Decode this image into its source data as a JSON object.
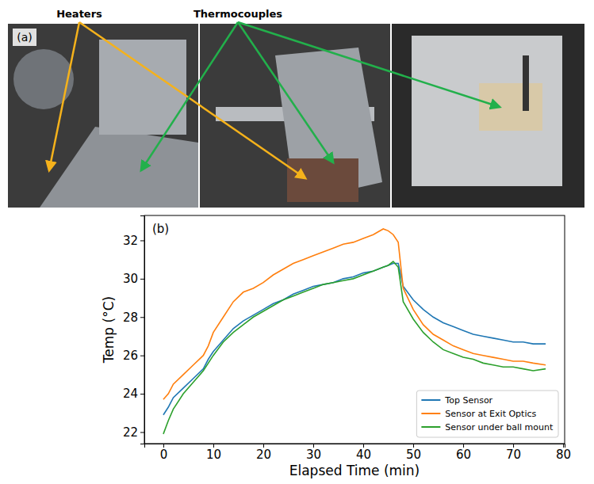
{
  "photo_panel": {
    "label": "(a)",
    "heaters_label": "Heaters",
    "thermocouples_label": "Thermocouples"
  },
  "chart_data": {
    "type": "line",
    "annotations": [
      "(b)"
    ],
    "x_label": "Elapsed Time (min)",
    "y_label": "Temp (°C)",
    "x": [
      0,
      1,
      2,
      4,
      6,
      8,
      9,
      10,
      12,
      14,
      16,
      18,
      20,
      22,
      24,
      26,
      28,
      30,
      32,
      34,
      36,
      38,
      40,
      42,
      44,
      45,
      46,
      47,
      48,
      50,
      52,
      54,
      56,
      58,
      60,
      62,
      64,
      66,
      68,
      70,
      72,
      74,
      76.5
    ],
    "series": [
      {
        "name": "Top Sensor",
        "color": "#1f77b4",
        "values": [
          22.9,
          23.3,
          23.8,
          24.3,
          24.8,
          25.3,
          25.8,
          26.2,
          26.8,
          27.4,
          27.8,
          28.1,
          28.4,
          28.7,
          28.9,
          29.2,
          29.4,
          29.6,
          29.7,
          29.8,
          30.0,
          30.1,
          30.3,
          30.4,
          30.6,
          30.7,
          30.8,
          30.8,
          29.6,
          28.9,
          28.4,
          28.0,
          27.7,
          27.5,
          27.3,
          27.1,
          27.0,
          26.9,
          26.8,
          26.7,
          26.7,
          26.6,
          26.6
        ]
      },
      {
        "name": "Sensor at Exit Optics",
        "color": "#ff7f0e",
        "values": [
          23.7,
          24.0,
          24.5,
          25.0,
          25.5,
          26.0,
          26.5,
          27.2,
          28.0,
          28.8,
          29.3,
          29.5,
          29.8,
          30.2,
          30.5,
          30.8,
          31.0,
          31.2,
          31.4,
          31.6,
          31.8,
          31.9,
          32.1,
          32.3,
          32.6,
          32.5,
          32.3,
          31.9,
          29.5,
          28.4,
          27.6,
          27.1,
          26.8,
          26.5,
          26.3,
          26.1,
          26.0,
          25.9,
          25.8,
          25.7,
          25.7,
          25.6,
          25.5
        ]
      },
      {
        "name": "Sensor under ball mount",
        "color": "#2ca02c",
        "values": [
          21.9,
          22.6,
          23.2,
          24.0,
          24.6,
          25.2,
          25.6,
          26.0,
          26.7,
          27.2,
          27.6,
          28.0,
          28.3,
          28.6,
          28.9,
          29.1,
          29.3,
          29.5,
          29.7,
          29.8,
          29.9,
          30.0,
          30.2,
          30.4,
          30.6,
          30.7,
          30.9,
          30.6,
          28.8,
          27.9,
          27.2,
          26.7,
          26.3,
          26.1,
          25.9,
          25.8,
          25.6,
          25.5,
          25.4,
          25.4,
          25.3,
          25.2,
          25.3
        ]
      }
    ],
    "xlim": [
      -3.8,
      80.3
    ],
    "xticks": [
      0,
      10,
      20,
      30,
      40,
      50,
      60,
      70,
      80
    ],
    "ylim": [
      21.4,
      33.3
    ],
    "yticks": [
      22,
      24,
      26,
      28,
      30,
      32
    ],
    "grid": false,
    "legend": "lower right"
  }
}
